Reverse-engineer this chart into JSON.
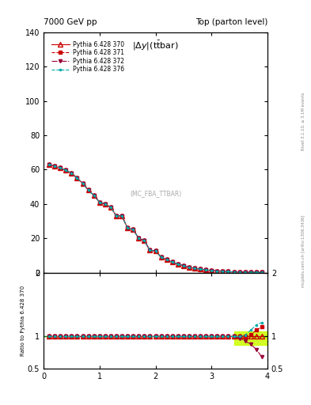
{
  "title_left": "7000 GeV pp",
  "title_right": "Top (parton level)",
  "ylabel_ratio": "Ratio to Pythia 6.428 370",
  "right_label_top": "Rivet 3.1.10, ≥ 3.1M events",
  "right_label_bottom": "mcplots.cern.ch [arXiv:1306.3436]",
  "panel_label": "(MC_FBA_TTBAR)",
  "x_title": "|$\\Delta$y|(t$\\bar{t}$bar)",
  "xlim": [
    0,
    4
  ],
  "ylim_main": [
    0,
    140
  ],
  "ylim_ratio": [
    0.5,
    2.0
  ],
  "yticks_main": [
    0,
    20,
    40,
    60,
    80,
    100,
    120,
    140
  ],
  "yticks_ratio": [
    0.5,
    1.0,
    2.0
  ],
  "ytick_ratio_labels": [
    "0.5",
    "1",
    "2"
  ],
  "xticks": [
    0,
    1,
    2,
    3,
    4
  ],
  "series": [
    {
      "label": "Pythia 6.428 370",
      "color": "#cc0000",
      "linestyle": "-",
      "marker": "^",
      "markersize": 4,
      "fillstyle": "none"
    },
    {
      "label": "Pythia 6.428 371",
      "color": "#cc0000",
      "linestyle": "--",
      "marker": "s",
      "markersize": 3,
      "fillstyle": "full"
    },
    {
      "label": "Pythia 6.428 372",
      "color": "#990033",
      "linestyle": "-.",
      "marker": "v",
      "markersize": 3,
      "fillstyle": "full"
    },
    {
      "label": "Pythia 6.428 376",
      "color": "#00aaaa",
      "linestyle": "--",
      "marker": ".",
      "markersize": 3,
      "fillstyle": "full"
    }
  ],
  "x_vals": [
    0.1,
    0.2,
    0.3,
    0.4,
    0.5,
    0.6,
    0.7,
    0.8,
    0.9,
    1.0,
    1.1,
    1.2,
    1.3,
    1.4,
    1.5,
    1.6,
    1.7,
    1.8,
    1.9,
    2.0,
    2.1,
    2.2,
    2.3,
    2.4,
    2.5,
    2.6,
    2.7,
    2.8,
    2.9,
    3.0,
    3.1,
    3.2,
    3.3,
    3.4,
    3.5,
    3.6,
    3.7,
    3.8,
    3.9
  ],
  "y_main_370": [
    63,
    62,
    61,
    59.5,
    58,
    55,
    52,
    48,
    45,
    41,
    40,
    38,
    33,
    33,
    26,
    25,
    20,
    18.5,
    13,
    12.5,
    9,
    7.5,
    6,
    5,
    4,
    3,
    2.5,
    2,
    1.5,
    1.2,
    0.9,
    0.7,
    0.5,
    0.35,
    0.25,
    0.18,
    0.12,
    0.08,
    0.05
  ],
  "y_ratio_371": [
    1.0,
    1.0,
    1.0,
    1.0,
    1.0,
    1.0,
    1.0,
    1.0,
    1.0,
    1.0,
    1.0,
    1.0,
    1.0,
    1.0,
    1.0,
    1.0,
    1.0,
    1.0,
    1.0,
    1.0,
    1.0,
    1.0,
    1.0,
    1.0,
    1.0,
    1.0,
    1.0,
    1.0,
    1.0,
    1.0,
    1.0,
    1.0,
    1.0,
    1.0,
    1.0,
    1.0,
    1.03,
    1.1,
    1.15
  ],
  "y_ratio_372": [
    1.0,
    1.0,
    1.0,
    1.0,
    1.0,
    1.0,
    1.0,
    1.0,
    1.0,
    1.0,
    1.0,
    1.0,
    1.0,
    1.0,
    1.0,
    1.0,
    1.0,
    1.0,
    1.0,
    1.0,
    1.0,
    1.0,
    1.0,
    1.0,
    1.0,
    1.0,
    1.0,
    1.0,
    1.0,
    1.0,
    1.0,
    1.0,
    1.0,
    1.0,
    0.97,
    0.93,
    0.88,
    0.8,
    0.68
  ],
  "y_ratio_376": [
    1.0,
    1.0,
    1.0,
    1.0,
    1.0,
    1.0,
    1.0,
    1.0,
    1.0,
    1.0,
    1.0,
    1.0,
    1.0,
    1.0,
    1.0,
    1.0,
    1.0,
    1.0,
    1.0,
    1.0,
    1.0,
    1.0,
    1.0,
    1.0,
    1.0,
    1.0,
    1.0,
    1.0,
    1.0,
    1.0,
    1.0,
    1.0,
    1.0,
    1.0,
    1.0,
    1.02,
    1.1,
    1.18,
    1.22
  ],
  "band_xmin": 3.4,
  "band_xmax": 4.0,
  "band_ylow": 0.87,
  "band_yhigh": 1.08,
  "band_color": "#ccff00",
  "ref_line_color": "#008800",
  "background_color": "#ffffff"
}
